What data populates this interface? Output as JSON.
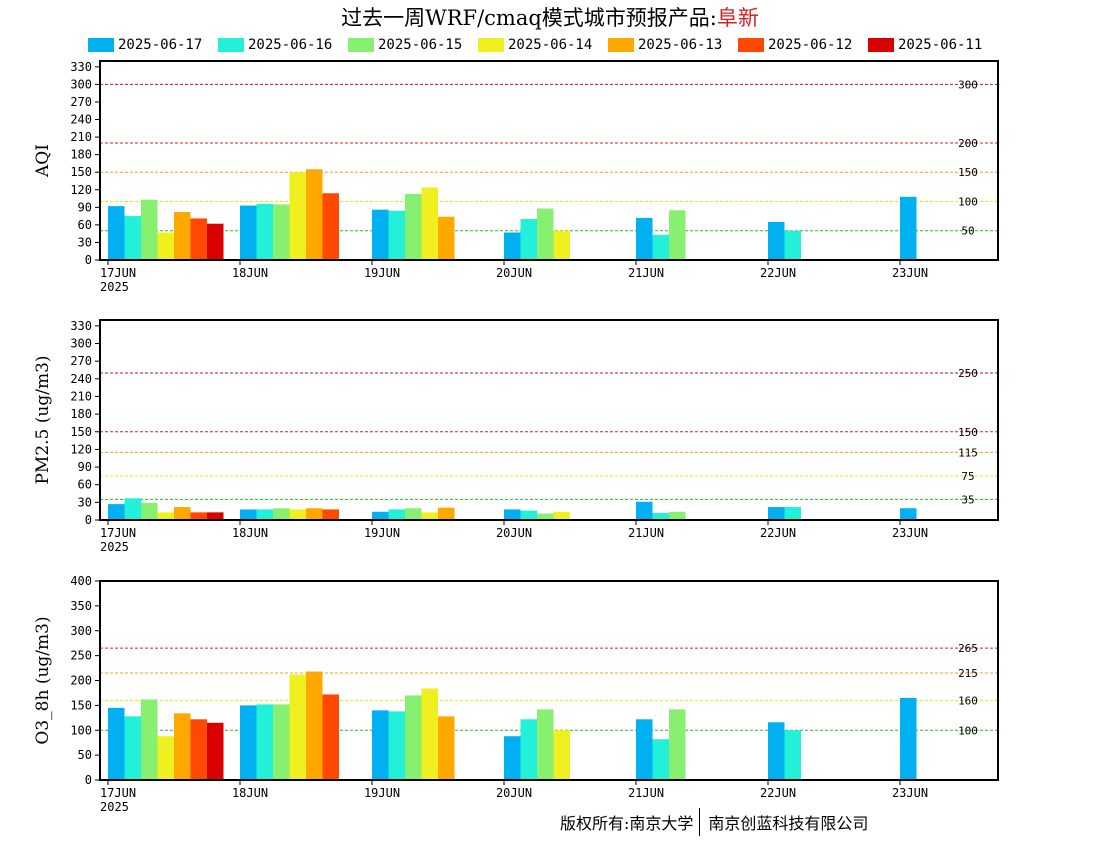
{
  "title": {
    "prefix": "过去一周WRF/cmaq模式城市预报产品:",
    "city": "阜新"
  },
  "legend": [
    {
      "label": "2025-06-17",
      "color": "#00b0f0"
    },
    {
      "label": "2025-06-16",
      "color": "#22f0d8"
    },
    {
      "label": "2025-06-15",
      "color": "#88f070"
    },
    {
      "label": "2025-06-14",
      "color": "#f0f020"
    },
    {
      "label": "2025-06-13",
      "color": "#ffa800"
    },
    {
      "label": "2025-06-12",
      "color": "#ff4800"
    },
    {
      "label": "2025-06-11",
      "color": "#d80000"
    }
  ],
  "chart_data": [
    {
      "type": "bar",
      "ylabel": "AQI",
      "ylim": [
        0,
        340
      ],
      "yticks": [
        0,
        30,
        60,
        90,
        120,
        150,
        180,
        210,
        240,
        270,
        300,
        330
      ],
      "categories": [
        "17JUN",
        "18JUN",
        "19JUN",
        "20JUN",
        "21JUN",
        "22JUN",
        "23JUN"
      ],
      "year_label": "2025",
      "thresholds": [
        {
          "value": 50,
          "label": "50",
          "color": "#22bb22"
        },
        {
          "value": 100,
          "label": "100",
          "color": "#e8e800"
        },
        {
          "value": 150,
          "label": "150",
          "color": "#f0a020"
        },
        {
          "value": 200,
          "label": "200",
          "color": "#e02020"
        },
        {
          "value": 300,
          "label": "300",
          "color": "#b01050"
        }
      ],
      "series": [
        {
          "name": "2025-06-17",
          "values": [
            92,
            93,
            86,
            47,
            72,
            65,
            108
          ]
        },
        {
          "name": "2025-06-16",
          "values": [
            75,
            96,
            84,
            70,
            43,
            50,
            null
          ]
        },
        {
          "name": "2025-06-15",
          "values": [
            103,
            95,
            113,
            88,
            85,
            null,
            null
          ]
        },
        {
          "name": "2025-06-14",
          "values": [
            47,
            150,
            124,
            50,
            null,
            null,
            null
          ]
        },
        {
          "name": "2025-06-13",
          "values": [
            82,
            155,
            74,
            null,
            null,
            null,
            null
          ]
        },
        {
          "name": "2025-06-12",
          "values": [
            71,
            114,
            null,
            null,
            null,
            null,
            null
          ]
        },
        {
          "name": "2025-06-11",
          "values": [
            62,
            null,
            null,
            null,
            null,
            null,
            null
          ]
        }
      ]
    },
    {
      "type": "bar",
      "ylabel": "PM2.5 (ug/m3)",
      "ylim": [
        0,
        340
      ],
      "yticks": [
        0,
        30,
        60,
        90,
        120,
        150,
        180,
        210,
        240,
        270,
        300,
        330
      ],
      "categories": [
        "17JUN",
        "18JUN",
        "19JUN",
        "20JUN",
        "21JUN",
        "22JUN",
        "23JUN"
      ],
      "year_label": "2025",
      "thresholds": [
        {
          "value": 35,
          "label": "35",
          "color": "#22bb22"
        },
        {
          "value": 75,
          "label": "75",
          "color": "#e8e800"
        },
        {
          "value": 115,
          "label": "115",
          "color": "#f0a020"
        },
        {
          "value": 150,
          "label": "150",
          "color": "#e02020"
        },
        {
          "value": 250,
          "label": "250",
          "color": "#b01050"
        }
      ],
      "series": [
        {
          "name": "2025-06-17",
          "values": [
            27,
            18,
            14,
            18,
            31,
            22,
            20
          ]
        },
        {
          "name": "2025-06-16",
          "values": [
            37,
            18,
            18,
            16,
            12,
            22,
            null
          ]
        },
        {
          "name": "2025-06-15",
          "values": [
            29,
            20,
            20,
            11,
            14,
            null,
            null
          ]
        },
        {
          "name": "2025-06-14",
          "values": [
            13,
            18,
            13,
            14,
            null,
            null,
            null
          ]
        },
        {
          "name": "2025-06-13",
          "values": [
            22,
            20,
            21,
            null,
            null,
            null,
            null
          ]
        },
        {
          "name": "2025-06-12",
          "values": [
            13,
            18,
            null,
            null,
            null,
            null,
            null
          ]
        },
        {
          "name": "2025-06-11",
          "values": [
            13,
            null,
            null,
            null,
            null,
            null,
            null
          ]
        }
      ]
    },
    {
      "type": "bar",
      "ylabel": "O3_8h (ug/m3)",
      "ylim": [
        0,
        400
      ],
      "yticks": [
        0,
        50,
        100,
        150,
        200,
        250,
        300,
        350,
        400
      ],
      "categories": [
        "17JUN",
        "18JUN",
        "19JUN",
        "20JUN",
        "21JUN",
        "22JUN",
        "23JUN"
      ],
      "year_label": "2025",
      "thresholds": [
        {
          "value": 100,
          "label": "100",
          "color": "#22bb22"
        },
        {
          "value": 160,
          "label": "160",
          "color": "#e8e800"
        },
        {
          "value": 215,
          "label": "215",
          "color": "#f0a020"
        },
        {
          "value": 265,
          "label": "265",
          "color": "#e02020"
        }
      ],
      "series": [
        {
          "name": "2025-06-17",
          "values": [
            145,
            150,
            140,
            88,
            122,
            116,
            165
          ]
        },
        {
          "name": "2025-06-16",
          "values": [
            128,
            152,
            138,
            122,
            82,
            100,
            null
          ]
        },
        {
          "name": "2025-06-15",
          "values": [
            162,
            152,
            170,
            142,
            142,
            null,
            null
          ]
        },
        {
          "name": "2025-06-14",
          "values": [
            88,
            212,
            184,
            100,
            null,
            null,
            null
          ]
        },
        {
          "name": "2025-06-13",
          "values": [
            134,
            218,
            128,
            null,
            null,
            null,
            null
          ]
        },
        {
          "name": "2025-06-12",
          "values": [
            122,
            172,
            null,
            null,
            null,
            null,
            null
          ]
        },
        {
          "name": "2025-06-11",
          "values": [
            115,
            null,
            null,
            null,
            null,
            null,
            null
          ]
        }
      ]
    }
  ],
  "credit": {
    "left": "版权所有:南京大学",
    "right": "南京创蓝科技有限公司"
  }
}
